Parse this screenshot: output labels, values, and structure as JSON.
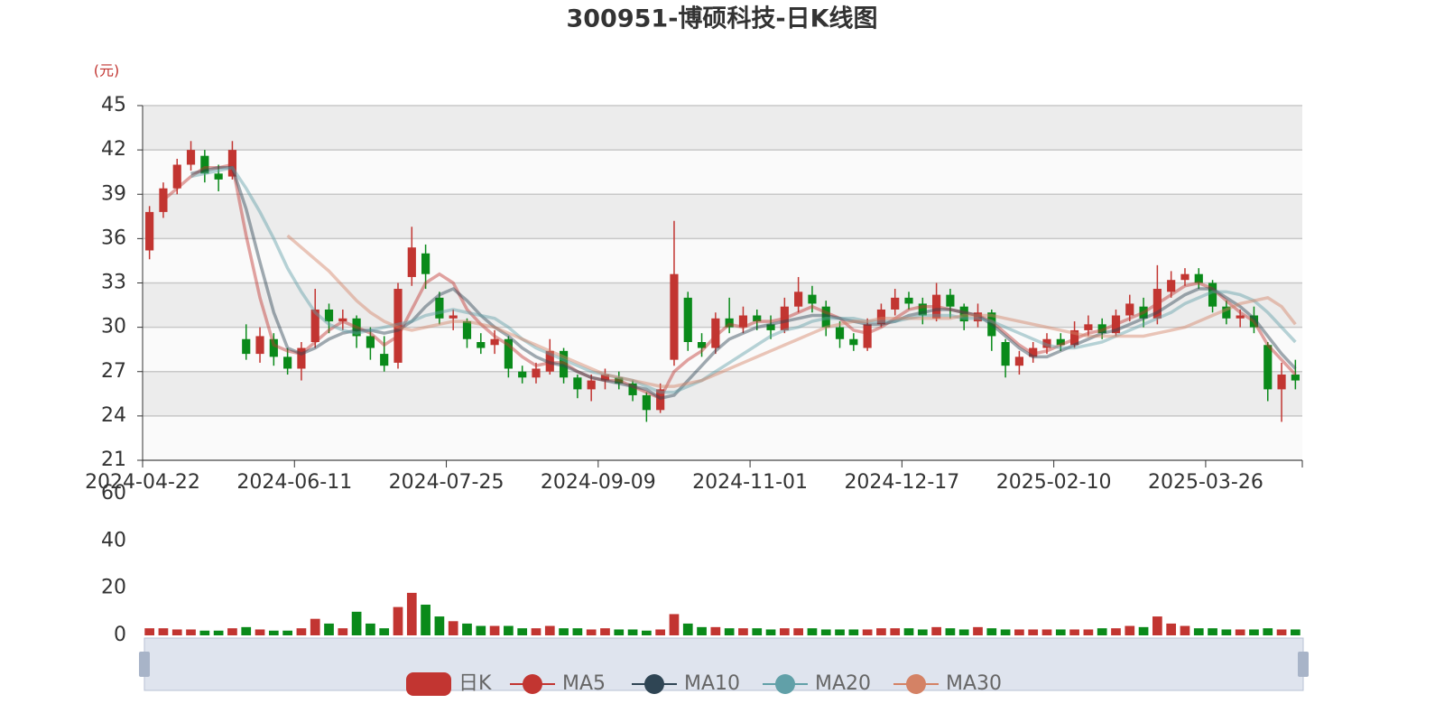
{
  "chart_data": [
    {
      "type": "candlestick",
      "title": "300951-博硕科技-日K线图",
      "y_axis_label": "(元)",
      "categories": [
        "2024-04-22",
        null,
        null,
        null,
        null,
        null,
        null,
        null,
        null,
        null,
        null,
        "2024-06-11",
        null,
        null,
        null,
        null,
        null,
        null,
        null,
        null,
        null,
        null,
        "2024-07-25",
        null,
        null,
        null,
        null,
        null,
        null,
        null,
        null,
        null,
        null,
        "2024-09-09",
        null,
        null,
        null,
        null,
        null,
        null,
        null,
        null,
        null,
        null,
        "2024-11-01",
        null,
        null,
        null,
        null,
        null,
        null,
        null,
        null,
        null,
        null,
        "2024-12-17",
        null,
        null,
        null,
        null,
        null,
        null,
        null,
        null,
        null,
        null,
        "2025-02-10",
        null,
        null,
        null,
        null,
        null,
        null,
        null,
        null,
        null,
        null,
        "2025-03-26",
        null,
        null,
        null,
        null,
        null,
        null
      ],
      "ylim": [
        21,
        45
      ],
      "yticks": [
        21,
        24,
        27,
        30,
        33,
        36,
        39,
        42,
        45
      ],
      "grid": true,
      "legend": "bottom",
      "series": [
        {
          "name": "日K",
          "type": "candlestick",
          "color": "#c23531",
          "down_color": "#0a8a1a",
          "values": [
            [
              35.2,
              37.8,
              34.6,
              38.2
            ],
            [
              37.8,
              39.4,
              37.4,
              39.8
            ],
            [
              39.4,
              41.0,
              39.0,
              41.4
            ],
            [
              41.0,
              42.0,
              40.6,
              42.6
            ],
            [
              41.6,
              40.4,
              39.8,
              42.0
            ],
            [
              40.4,
              40.0,
              39.2,
              41.0
            ],
            [
              40.2,
              42.0,
              40.0,
              42.6
            ],
            [
              29.2,
              28.2,
              27.8,
              30.2
            ],
            [
              28.2,
              29.4,
              27.6,
              30.0
            ],
            [
              29.2,
              28.0,
              27.4,
              29.6
            ],
            [
              28.0,
              27.2,
              26.8,
              28.6
            ],
            [
              27.2,
              28.6,
              26.4,
              29.0
            ],
            [
              29.0,
              31.2,
              28.6,
              32.6
            ],
            [
              31.2,
              30.4,
              29.6,
              31.6
            ],
            [
              30.4,
              30.6,
              29.8,
              31.2
            ],
            [
              30.6,
              29.4,
              28.6,
              30.8
            ],
            [
              29.4,
              28.6,
              27.8,
              30.0
            ],
            [
              28.2,
              27.4,
              27.0,
              29.4
            ],
            [
              27.6,
              32.6,
              27.2,
              33.0
            ],
            [
              33.4,
              35.4,
              32.8,
              36.8
            ],
            [
              35.0,
              33.6,
              32.6,
              35.6
            ],
            [
              32.0,
              30.6,
              30.2,
              32.4
            ],
            [
              30.6,
              30.8,
              29.8,
              31.2
            ],
            [
              30.4,
              29.2,
              28.6,
              30.6
            ],
            [
              29.0,
              28.6,
              28.2,
              29.6
            ],
            [
              28.8,
              29.2,
              28.2,
              29.8
            ],
            [
              29.2,
              27.2,
              26.6,
              29.4
            ],
            [
              27.0,
              26.6,
              26.2,
              27.4
            ],
            [
              26.6,
              27.2,
              26.2,
              27.6
            ],
            [
              27.0,
              28.4,
              26.8,
              29.2
            ],
            [
              28.4,
              26.6,
              26.2,
              28.6
            ],
            [
              26.6,
              25.8,
              25.2,
              26.8
            ],
            [
              25.8,
              26.4,
              25.0,
              26.8
            ],
            [
              26.4,
              26.8,
              25.8,
              27.2
            ],
            [
              26.6,
              26.2,
              25.8,
              27.0
            ],
            [
              26.2,
              25.4,
              25.0,
              26.4
            ],
            [
              25.4,
              24.4,
              23.6,
              25.6
            ],
            [
              24.4,
              25.8,
              24.2,
              26.2
            ],
            [
              27.8,
              33.6,
              27.4,
              37.2
            ],
            [
              32.0,
              29.0,
              28.4,
              32.4
            ],
            [
              29.0,
              28.6,
              28.0,
              29.6
            ],
            [
              28.6,
              30.6,
              28.2,
              31.0
            ],
            [
              30.6,
              30.0,
              29.6,
              32.0
            ],
            [
              30.0,
              30.8,
              29.6,
              31.4
            ],
            [
              30.8,
              30.4,
              29.8,
              31.2
            ],
            [
              30.2,
              29.8,
              29.2,
              30.8
            ],
            [
              29.8,
              31.4,
              29.6,
              32.0
            ],
            [
              31.4,
              32.4,
              31.0,
              33.4
            ],
            [
              32.2,
              31.6,
              31.0,
              32.8
            ],
            [
              31.4,
              30.0,
              29.4,
              31.8
            ],
            [
              30.0,
              29.2,
              28.6,
              30.4
            ],
            [
              29.2,
              28.8,
              28.4,
              29.6
            ],
            [
              28.6,
              30.2,
              28.4,
              30.6
            ],
            [
              30.2,
              31.2,
              30.0,
              31.6
            ],
            [
              31.2,
              32.0,
              30.8,
              32.6
            ],
            [
              32.0,
              31.6,
              31.2,
              32.4
            ],
            [
              31.6,
              30.8,
              30.2,
              32.0
            ],
            [
              30.6,
              32.2,
              30.4,
              33.0
            ],
            [
              32.2,
              31.4,
              30.6,
              32.6
            ],
            [
              31.4,
              30.4,
              29.8,
              31.6
            ],
            [
              30.4,
              31.0,
              30.0,
              31.6
            ],
            [
              31.0,
              29.4,
              28.4,
              31.2
            ],
            [
              29.0,
              27.4,
              26.6,
              29.2
            ],
            [
              27.4,
              28.0,
              26.8,
              28.4
            ],
            [
              28.0,
              28.6,
              27.6,
              29.0
            ],
            [
              28.6,
              29.2,
              28.2,
              29.6
            ],
            [
              29.2,
              28.8,
              28.4,
              29.6
            ],
            [
              28.8,
              29.8,
              28.6,
              30.4
            ],
            [
              29.8,
              30.2,
              29.4,
              30.8
            ],
            [
              30.2,
              29.6,
              29.2,
              30.6
            ],
            [
              29.6,
              30.8,
              29.4,
              31.2
            ],
            [
              30.8,
              31.6,
              30.4,
              32.2
            ],
            [
              31.4,
              30.6,
              30.0,
              32.0
            ],
            [
              30.6,
              32.6,
              30.2,
              34.2
            ],
            [
              32.4,
              33.2,
              32.0,
              33.8
            ],
            [
              33.2,
              33.6,
              32.8,
              34.0
            ],
            [
              33.6,
              33.0,
              32.6,
              34.0
            ],
            [
              33.0,
              31.4,
              31.0,
              33.2
            ],
            [
              31.4,
              30.6,
              30.2,
              31.8
            ],
            [
              30.6,
              30.8,
              30.0,
              31.2
            ],
            [
              30.8,
              30.0,
              29.6,
              31.4
            ],
            [
              28.8,
              25.8,
              25.0,
              29.0
            ],
            [
              25.8,
              26.8,
              23.6,
              27.6
            ],
            [
              26.8,
              26.4,
              25.8,
              27.8
            ]
          ]
        },
        {
          "name": "MA5",
          "type": "line",
          "color": "#c23531",
          "values": [
            null,
            38.6,
            39.4,
            40.2,
            40.8,
            40.8,
            41.0,
            36.2,
            32.0,
            28.8,
            28.4,
            28.2,
            29.0,
            29.8,
            30.4,
            30.0,
            29.6,
            28.8,
            29.4,
            31.2,
            33.0,
            33.6,
            33.0,
            31.2,
            30.2,
            29.4,
            28.8,
            28.0,
            27.4,
            27.6,
            27.6,
            27.0,
            26.6,
            26.4,
            26.4,
            26.0,
            25.6,
            25.2,
            27.0,
            27.8,
            28.4,
            29.4,
            30.2,
            30.0,
            30.4,
            30.4,
            30.6,
            31.0,
            31.4,
            31.0,
            30.6,
            29.8,
            29.6,
            30.0,
            30.6,
            31.2,
            31.4,
            31.4,
            31.2,
            31.0,
            30.8,
            30.4,
            29.6,
            28.8,
            28.2,
            28.4,
            28.8,
            29.2,
            29.6,
            29.8,
            30.2,
            30.6,
            31.0,
            31.6,
            32.2,
            32.8,
            33.0,
            32.6,
            31.8,
            31.0,
            30.4,
            28.8,
            27.8,
            26.8
          ]
        },
        {
          "name": "MA10",
          "type": "line",
          "color": "#2f4554",
          "values": [
            null,
            null,
            null,
            40.4,
            40.6,
            40.8,
            40.8,
            38.0,
            34.4,
            31.0,
            28.6,
            28.2,
            28.6,
            29.2,
            29.6,
            29.8,
            29.8,
            29.6,
            29.8,
            30.4,
            31.4,
            32.2,
            32.6,
            31.8,
            30.8,
            30.0,
            29.4,
            28.6,
            28.0,
            27.6,
            27.4,
            27.0,
            26.6,
            26.4,
            26.2,
            26.0,
            25.8,
            25.2,
            25.4,
            26.4,
            27.4,
            28.4,
            29.2,
            29.6,
            30.0,
            30.2,
            30.4,
            30.6,
            30.8,
            30.8,
            30.6,
            30.4,
            30.2,
            30.2,
            30.4,
            30.8,
            31.0,
            31.2,
            31.2,
            31.0,
            30.8,
            30.2,
            29.4,
            28.6,
            28.0,
            28.0,
            28.4,
            28.8,
            29.2,
            29.6,
            29.8,
            30.2,
            30.6,
            31.0,
            31.6,
            32.2,
            32.6,
            32.6,
            32.0,
            31.4,
            30.6,
            29.4,
            28.2,
            27.2
          ]
        },
        {
          "name": "MA20",
          "type": "line",
          "color": "#61a0a8",
          "values": [
            null,
            null,
            null,
            40.2,
            40.4,
            40.6,
            40.8,
            39.4,
            37.8,
            36.0,
            34.0,
            32.4,
            31.0,
            30.2,
            29.8,
            29.6,
            29.8,
            30.0,
            30.2,
            30.4,
            30.8,
            31.0,
            31.2,
            31.0,
            30.8,
            30.6,
            30.0,
            29.2,
            28.6,
            28.2,
            27.8,
            27.4,
            27.0,
            26.8,
            26.6,
            26.4,
            26.0,
            25.6,
            25.6,
            26.0,
            26.4,
            27.0,
            27.6,
            28.2,
            28.8,
            29.4,
            29.8,
            30.0,
            30.4,
            30.6,
            30.6,
            30.6,
            30.4,
            30.4,
            30.4,
            30.6,
            30.8,
            30.8,
            30.8,
            30.6,
            30.6,
            30.4,
            30.0,
            29.6,
            29.2,
            28.8,
            28.6,
            28.6,
            28.8,
            29.0,
            29.4,
            29.8,
            30.2,
            30.6,
            31.0,
            31.6,
            32.0,
            32.4,
            32.4,
            32.2,
            31.8,
            31.0,
            30.0,
            29.0
          ]
        },
        {
          "name": "MA30",
          "type": "line",
          "color": "#d48265",
          "values": [
            null,
            null,
            null,
            null,
            null,
            null,
            null,
            null,
            null,
            null,
            36.2,
            35.4,
            34.6,
            33.8,
            32.8,
            31.8,
            31.0,
            30.4,
            30.0,
            29.8,
            30.0,
            30.2,
            30.4,
            30.4,
            30.2,
            30.0,
            29.6,
            29.2,
            28.8,
            28.4,
            28.0,
            27.6,
            27.2,
            26.8,
            26.6,
            26.4,
            26.2,
            26.0,
            26.0,
            26.2,
            26.4,
            26.8,
            27.2,
            27.6,
            28.0,
            28.4,
            28.8,
            29.2,
            29.6,
            30.0,
            30.2,
            30.4,
            30.4,
            30.6,
            30.6,
            30.6,
            30.6,
            30.6,
            30.6,
            30.8,
            30.8,
            30.8,
            30.6,
            30.4,
            30.2,
            30.0,
            29.8,
            29.6,
            29.4,
            29.4,
            29.4,
            29.4,
            29.4,
            29.6,
            29.8,
            30.0,
            30.4,
            30.8,
            31.2,
            31.6,
            31.8,
            32.0,
            31.4,
            30.2
          ]
        }
      ]
    },
    {
      "type": "bar",
      "values": [
        3,
        3,
        2.5,
        2.5,
        2,
        2,
        3,
        3.5,
        2.5,
        2,
        2,
        3,
        7,
        5,
        3,
        10,
        5,
        3,
        12,
        18,
        13,
        8,
        6,
        5,
        4,
        4,
        4,
        3,
        3,
        4,
        3,
        3,
        2.5,
        3,
        2.5,
        2.5,
        2,
        2.5,
        9,
        5,
        3.5,
        3.5,
        3,
        3,
        3,
        2.5,
        3,
        3,
        3,
        2.5,
        2.5,
        2.5,
        2.5,
        3,
        3,
        3,
        2.5,
        3.5,
        3,
        2.5,
        3.5,
        3,
        2.5,
        2.5,
        2.5,
        2.5,
        2.5,
        2.5,
        2.5,
        3,
        3,
        4,
        3.5,
        8,
        5,
        4,
        3,
        3,
        2.5,
        2.5,
        2.5,
        3,
        2.5,
        2.5
      ],
      "ylim": [
        0,
        60
      ],
      "yticks": [
        0,
        20,
        40,
        60
      ]
    }
  ]
}
